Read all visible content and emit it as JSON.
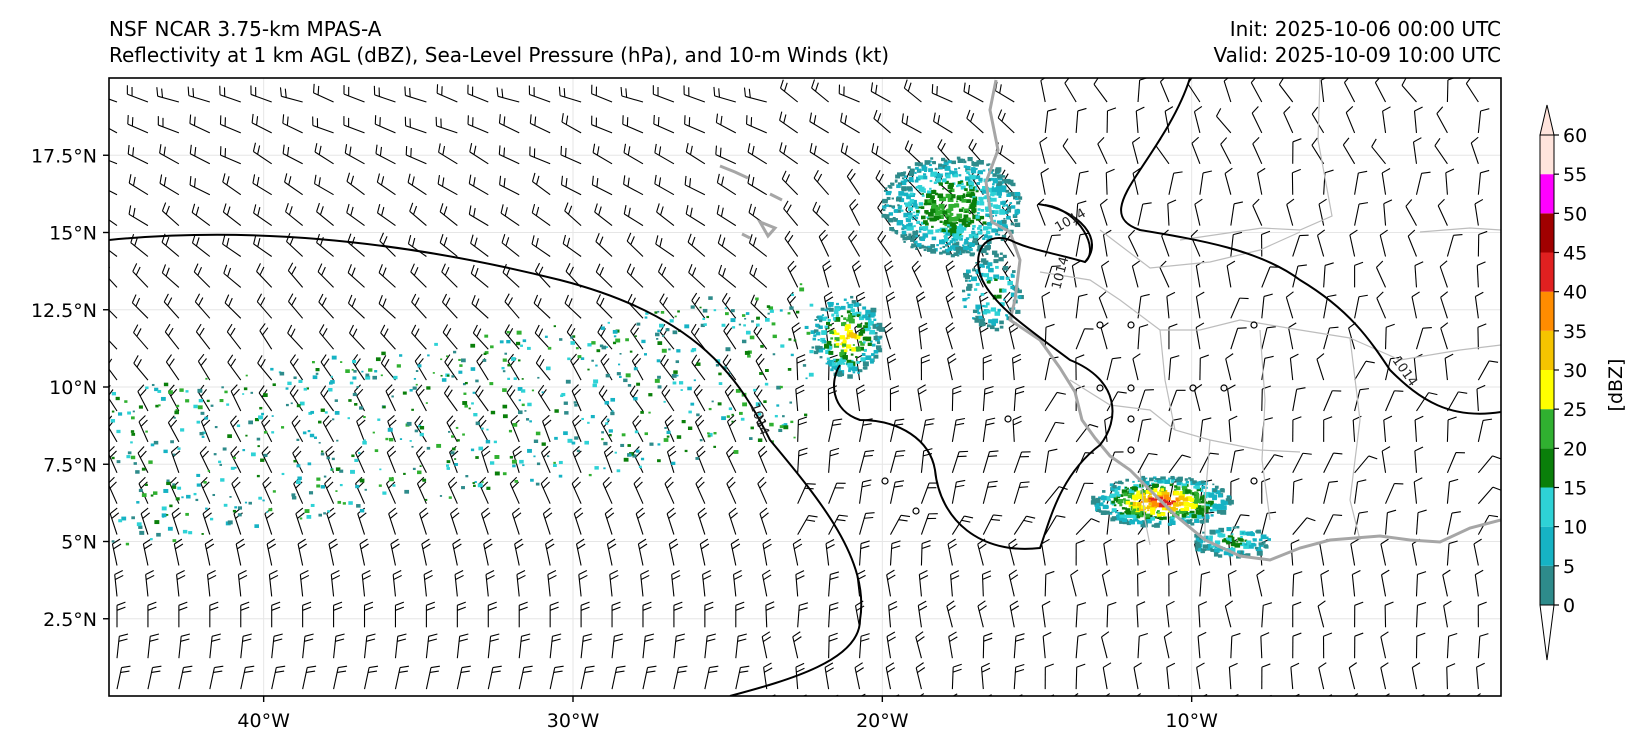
{
  "header": {
    "model_name": "NSF NCAR 3.75-km MPAS-A",
    "product": "Reflectivity at 1 km AGL (dBZ), Sea-Level Pressure (hPa), and 10-m Winds (kt)",
    "init": "Init: 2025-10-06 00:00 UTC",
    "valid": "Valid: 2025-10-09 10:00 UTC"
  },
  "map": {
    "lon_range": [
      -45,
      0
    ],
    "lat_range": [
      0,
      20
    ],
    "lon_ticks": [
      {
        "value": -40,
        "label": "40°W"
      },
      {
        "value": -30,
        "label": "30°W"
      },
      {
        "value": -20,
        "label": "20°W"
      },
      {
        "value": -10,
        "label": "10°W"
      }
    ],
    "lat_ticks": [
      {
        "value": 2.5,
        "label": "2.5°N"
      },
      {
        "value": 5,
        "label": "5°N"
      },
      {
        "value": 7.5,
        "label": "7.5°N"
      },
      {
        "value": 10,
        "label": "10°N"
      },
      {
        "value": 12.5,
        "label": "12.5°N"
      },
      {
        "value": 15,
        "label": "15°N"
      },
      {
        "value": 17.5,
        "label": "17.5°N"
      }
    ],
    "isobar_label": "1014",
    "colors": {
      "isobar": "#000000",
      "coastline": "#a6a6a6",
      "borders": "#bdbdbd",
      "barbs": "#000000",
      "grid": "#e6e6e6"
    }
  },
  "colorbar": {
    "label": "[dBZ]",
    "ticks": [
      "0",
      "5",
      "10",
      "15",
      "20",
      "25",
      "30",
      "35",
      "40",
      "45",
      "50",
      "55",
      "60"
    ],
    "colors": [
      "#ffffff",
      "#2e8b8b",
      "#16b3c4",
      "#2ed2d6",
      "#0a7f0a",
      "#30b030",
      "#ffff00",
      "#f5c400",
      "#ff8c00",
      "#e02020",
      "#a00000",
      "#ff00ff",
      "#ffe4dc"
    ]
  }
}
